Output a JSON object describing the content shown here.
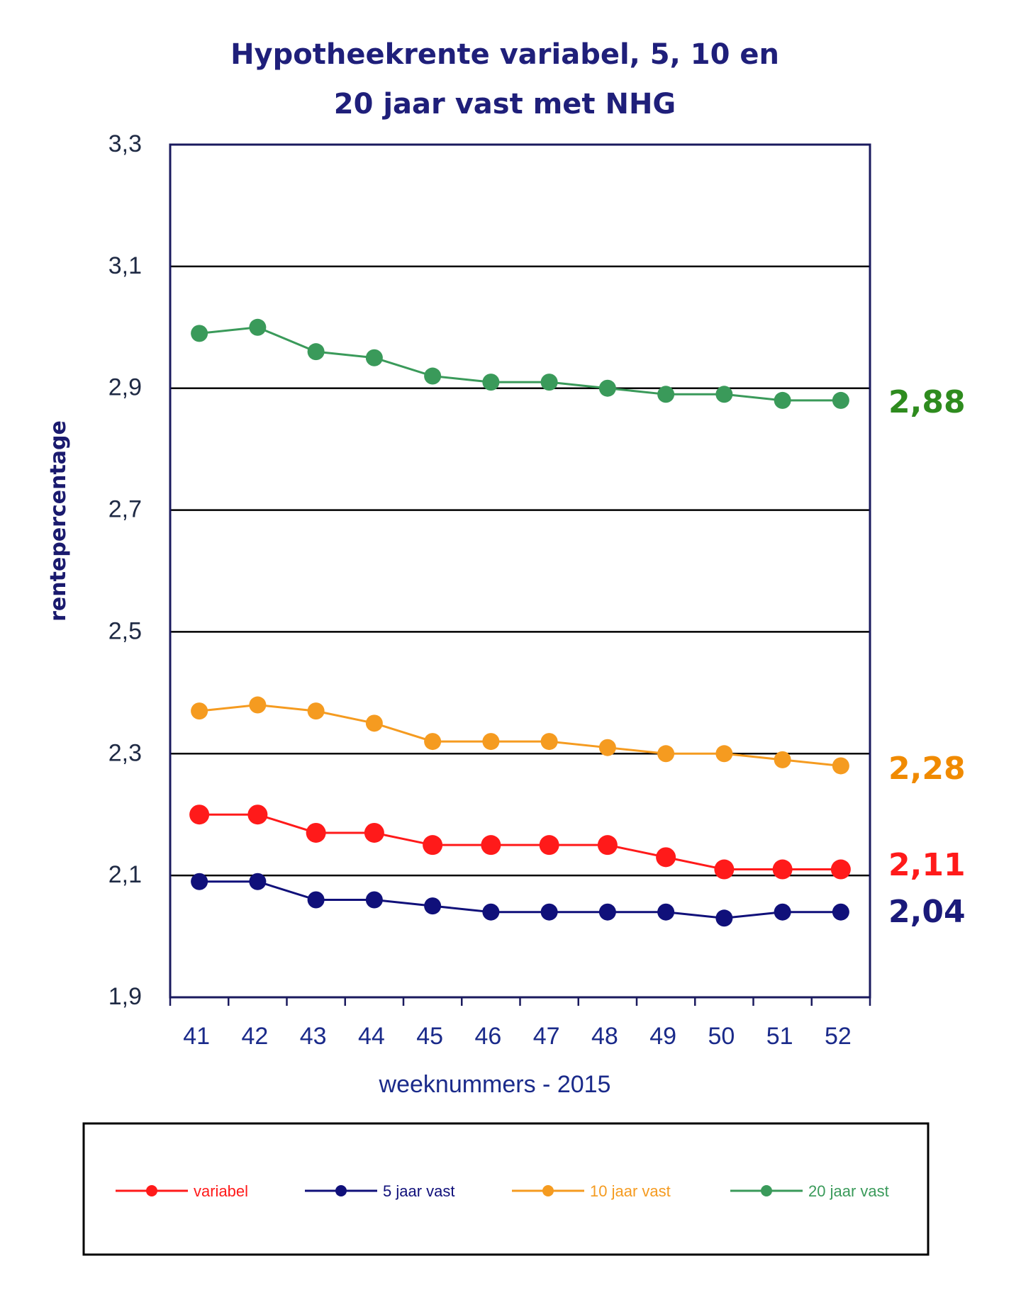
{
  "chart_data": {
    "type": "line",
    "title": [
      "Hypotheekrente variabel, 5, 10 en",
      "20 jaar vast met NHG"
    ],
    "xlabel": "weeknummers - 2015",
    "ylabel": "rentepercentage",
    "categories": [
      "41",
      "42",
      "43",
      "44",
      "45",
      "46",
      "47",
      "48",
      "49",
      "50",
      "51",
      "52"
    ],
    "ylim": [
      1.9,
      3.3
    ],
    "yticks": [
      1.9,
      2.1,
      2.3,
      2.5,
      2.7,
      2.9,
      3.1,
      3.3
    ],
    "ytick_labels": [
      "1,9",
      "2,1",
      "2,3",
      "2,5",
      "2,7",
      "2,9",
      "3,1",
      "3,3"
    ],
    "grid": "horizontal",
    "legend_position": "bottom",
    "series": [
      {
        "name": "variabel",
        "color": "#ff1a1a",
        "marker": "large",
        "values": [
          2.2,
          2.2,
          2.17,
          2.17,
          2.15,
          2.15,
          2.15,
          2.15,
          2.13,
          2.11,
          2.11,
          2.11
        ],
        "end_label": "2,11"
      },
      {
        "name": "5 jaar vast",
        "color": "#10107a",
        "marker": "medium",
        "values": [
          2.09,
          2.09,
          2.06,
          2.06,
          2.05,
          2.04,
          2.04,
          2.04,
          2.04,
          2.03,
          2.04,
          2.04
        ],
        "end_label": "2,04"
      },
      {
        "name": "10 jaar vast",
        "color": "#f59b20",
        "marker": "medium",
        "values": [
          2.37,
          2.38,
          2.37,
          2.35,
          2.32,
          2.32,
          2.32,
          2.31,
          2.3,
          2.3,
          2.29,
          2.28
        ],
        "end_label": "2,28"
      },
      {
        "name": "20 jaar vast",
        "color": "#3a9a5a",
        "marker": "medium",
        "values": [
          2.99,
          3.0,
          2.96,
          2.95,
          2.92,
          2.91,
          2.91,
          2.9,
          2.89,
          2.89,
          2.88,
          2.88
        ],
        "end_label": "2,88"
      }
    ],
    "end_label_colors": [
      "#ff1a1a",
      "#1a1a7a",
      "#f08a00",
      "#2e8b1e"
    ]
  }
}
